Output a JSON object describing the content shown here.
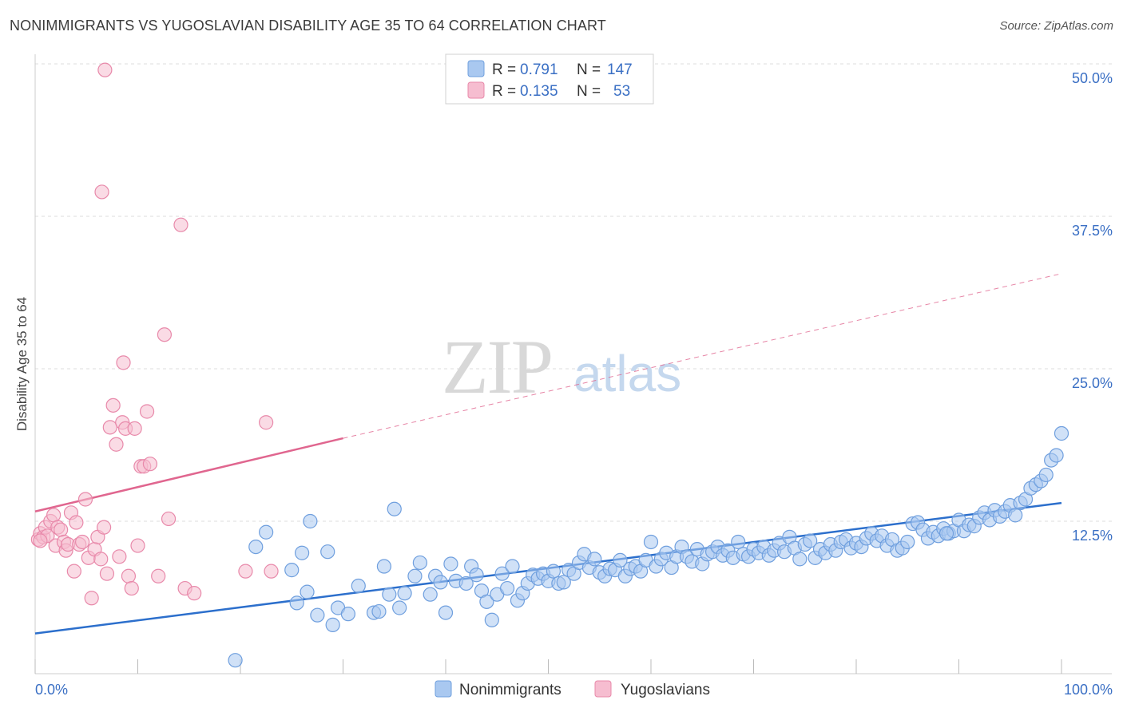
{
  "header": {
    "title": "NONIMMIGRANTS VS YUGOSLAVIAN DISABILITY AGE 35 TO 64 CORRELATION CHART",
    "source": "Source: ZipAtlas.com"
  },
  "watermark": {
    "zip": "ZIP",
    "atlas": "atlas"
  },
  "colors": {
    "blue_fill": "#a9c8f0",
    "blue_stroke": "#6f9fde",
    "blue_line": "#2c6fcc",
    "pink_fill": "#f6bdd0",
    "pink_stroke": "#e889aa",
    "pink_line": "#e0668f",
    "tick_text": "#3a6fc4",
    "grid": "#dcdcdc"
  },
  "chart_data": {
    "type": "scatter",
    "title": "NONIMMIGRANTS VS YUGOSLAVIAN DISABILITY AGE 35 TO 64 CORRELATION CHART",
    "xlabel": "",
    "ylabel": "Disability Age 35 to 64",
    "xlim": [
      0,
      100
    ],
    "ylim": [
      0,
      50
    ],
    "x_tick_labels": [
      "0.0%",
      "100.0%"
    ],
    "y_ticks": [
      12.5,
      25.0,
      37.5,
      50.0
    ],
    "y_tick_labels": [
      "12.5%",
      "25.0%",
      "37.5%",
      "50.0%"
    ],
    "grid": true,
    "legend_position": "top-center",
    "legend": [
      {
        "r_label": "R =",
        "r_value": "0.791",
        "n_label": "N =",
        "n_value": "147"
      },
      {
        "r_label": "R =",
        "r_value": "0.135",
        "n_label": "N =",
        "n_value": "53"
      }
    ],
    "bottom_legend": [
      "Nonimmigrants",
      "Yugoslavians"
    ],
    "series": [
      {
        "name": "Nonimmigrants",
        "color": "#a9c8f0",
        "trend": {
          "x": [
            0,
            100
          ],
          "y": [
            3.3,
            14.0
          ],
          "style": "solid"
        },
        "points": [
          [
            19.5,
            1.1
          ],
          [
            21.5,
            10.4
          ],
          [
            22.5,
            11.6
          ],
          [
            25.0,
            8.5
          ],
          [
            25.5,
            5.8
          ],
          [
            26.0,
            9.9
          ],
          [
            26.5,
            6.7
          ],
          [
            26.8,
            12.5
          ],
          [
            27.5,
            4.8
          ],
          [
            28.5,
            10.0
          ],
          [
            29.0,
            4.0
          ],
          [
            29.5,
            5.4
          ],
          [
            30.5,
            4.9
          ],
          [
            31.5,
            7.2
          ],
          [
            33.0,
            5.0
          ],
          [
            33.5,
            5.1
          ],
          [
            34.0,
            8.8
          ],
          [
            34.5,
            6.5
          ],
          [
            35.0,
            13.5
          ],
          [
            35.5,
            5.4
          ],
          [
            36.0,
            6.6
          ],
          [
            37.0,
            8.0
          ],
          [
            37.5,
            9.1
          ],
          [
            38.5,
            6.5
          ],
          [
            39.0,
            8.0
          ],
          [
            39.5,
            7.5
          ],
          [
            40.0,
            5.0
          ],
          [
            40.5,
            9.0
          ],
          [
            41.0,
            7.6
          ],
          [
            42.0,
            7.4
          ],
          [
            42.5,
            8.8
          ],
          [
            43.0,
            8.1
          ],
          [
            43.5,
            6.8
          ],
          [
            44.0,
            5.9
          ],
          [
            44.5,
            4.4
          ],
          [
            45.0,
            6.5
          ],
          [
            45.5,
            8.2
          ],
          [
            46.0,
            7.0
          ],
          [
            46.5,
            8.8
          ],
          [
            47.0,
            6.0
          ],
          [
            47.5,
            6.6
          ],
          [
            48.0,
            7.4
          ],
          [
            48.5,
            8.1
          ],
          [
            49.0,
            7.8
          ],
          [
            49.5,
            8.2
          ],
          [
            50.0,
            7.6
          ],
          [
            50.5,
            8.4
          ],
          [
            51.0,
            7.4
          ],
          [
            51.5,
            7.5
          ],
          [
            52.0,
            8.5
          ],
          [
            52.5,
            8.2
          ],
          [
            53.0,
            9.1
          ],
          [
            53.5,
            9.8
          ],
          [
            54.0,
            8.7
          ],
          [
            54.5,
            9.4
          ],
          [
            55.0,
            8.3
          ],
          [
            55.5,
            8.0
          ],
          [
            56.0,
            8.6
          ],
          [
            56.5,
            8.5
          ],
          [
            57.0,
            9.3
          ],
          [
            57.5,
            8.0
          ],
          [
            58.0,
            8.6
          ],
          [
            58.5,
            8.8
          ],
          [
            59.0,
            8.4
          ],
          [
            59.5,
            9.3
          ],
          [
            60.0,
            10.8
          ],
          [
            60.5,
            8.8
          ],
          [
            61.0,
            9.4
          ],
          [
            61.5,
            9.9
          ],
          [
            62.0,
            8.7
          ],
          [
            62.5,
            9.6
          ],
          [
            63.0,
            10.4
          ],
          [
            63.5,
            9.6
          ],
          [
            64.0,
            9.2
          ],
          [
            64.5,
            10.2
          ],
          [
            65.0,
            9.0
          ],
          [
            65.5,
            9.8
          ],
          [
            66.0,
            10.0
          ],
          [
            66.5,
            10.4
          ],
          [
            67.0,
            9.7
          ],
          [
            67.5,
            10.1
          ],
          [
            68.0,
            9.5
          ],
          [
            68.5,
            10.8
          ],
          [
            69.0,
            9.8
          ],
          [
            69.5,
            9.6
          ],
          [
            70.0,
            10.2
          ],
          [
            70.5,
            9.9
          ],
          [
            71.0,
            10.4
          ],
          [
            71.5,
            9.7
          ],
          [
            72.0,
            10.1
          ],
          [
            72.5,
            10.7
          ],
          [
            73.0,
            10.0
          ],
          [
            73.5,
            11.2
          ],
          [
            74.0,
            10.3
          ],
          [
            74.5,
            9.4
          ],
          [
            75.0,
            10.6
          ],
          [
            75.5,
            10.9
          ],
          [
            76.0,
            9.5
          ],
          [
            76.5,
            10.2
          ],
          [
            77.0,
            9.9
          ],
          [
            77.5,
            10.6
          ],
          [
            78.0,
            10.1
          ],
          [
            78.5,
            10.8
          ],
          [
            79.0,
            11.0
          ],
          [
            79.5,
            10.3
          ],
          [
            80.0,
            10.7
          ],
          [
            80.5,
            10.4
          ],
          [
            81.0,
            11.1
          ],
          [
            81.5,
            11.5
          ],
          [
            82.0,
            10.9
          ],
          [
            82.5,
            11.3
          ],
          [
            83.0,
            10.5
          ],
          [
            83.5,
            11.0
          ],
          [
            84.0,
            10.1
          ],
          [
            84.5,
            10.3
          ],
          [
            85.0,
            10.8
          ],
          [
            85.5,
            12.3
          ],
          [
            86.0,
            12.4
          ],
          [
            86.5,
            11.8
          ],
          [
            87.0,
            11.1
          ],
          [
            87.5,
            11.6
          ],
          [
            88.0,
            11.3
          ],
          [
            88.5,
            11.9
          ],
          [
            89.0,
            11.5
          ],
          [
            89.5,
            11.7
          ],
          [
            90.0,
            12.6
          ],
          [
            90.5,
            11.7
          ],
          [
            91.0,
            12.2
          ],
          [
            91.5,
            12.1
          ],
          [
            92.0,
            12.8
          ],
          [
            92.5,
            13.2
          ],
          [
            93.0,
            12.6
          ],
          [
            93.5,
            13.4
          ],
          [
            94.0,
            12.9
          ],
          [
            94.5,
            13.3
          ],
          [
            95.0,
            13.8
          ],
          [
            95.5,
            13.0
          ],
          [
            96.0,
            14.0
          ],
          [
            96.5,
            14.3
          ],
          [
            97.0,
            15.2
          ],
          [
            97.5,
            15.5
          ],
          [
            98.0,
            15.8
          ],
          [
            98.5,
            16.3
          ],
          [
            99.0,
            17.5
          ],
          [
            99.5,
            17.9
          ],
          [
            100.0,
            19.7
          ],
          [
            88.8,
            11.5
          ]
        ]
      },
      {
        "name": "Yugoslavians",
        "color": "#f6bdd0",
        "trend": {
          "x": [
            0,
            30,
            100
          ],
          "y": [
            13.3,
            19.3,
            32.8
          ],
          "style": "solid-then-dashed"
        },
        "points": [
          [
            0.3,
            11.0
          ],
          [
            0.5,
            11.5
          ],
          [
            0.8,
            11.2
          ],
          [
            1.0,
            12.0
          ],
          [
            1.2,
            11.3
          ],
          [
            1.5,
            12.5
          ],
          [
            1.8,
            13.0
          ],
          [
            2.0,
            10.5
          ],
          [
            2.2,
            12.0
          ],
          [
            2.5,
            11.8
          ],
          [
            2.8,
            10.8
          ],
          [
            3.0,
            10.1
          ],
          [
            3.2,
            10.6
          ],
          [
            3.5,
            13.2
          ],
          [
            3.8,
            8.4
          ],
          [
            4.0,
            12.4
          ],
          [
            4.3,
            10.6
          ],
          [
            4.6,
            10.8
          ],
          [
            4.9,
            14.3
          ],
          [
            5.2,
            9.5
          ],
          [
            5.5,
            6.2
          ],
          [
            5.8,
            10.2
          ],
          [
            6.1,
            11.2
          ],
          [
            6.4,
            9.4
          ],
          [
            6.7,
            12.0
          ],
          [
            7.0,
            8.2
          ],
          [
            7.3,
            20.2
          ],
          [
            7.6,
            22.0
          ],
          [
            7.9,
            18.8
          ],
          [
            8.2,
            9.6
          ],
          [
            8.5,
            20.6
          ],
          [
            8.8,
            20.1
          ],
          [
            9.1,
            8.0
          ],
          [
            9.4,
            7.0
          ],
          [
            9.7,
            20.1
          ],
          [
            10.0,
            10.5
          ],
          [
            10.3,
            17.0
          ],
          [
            10.6,
            17.0
          ],
          [
            10.9,
            21.5
          ],
          [
            11.2,
            17.2
          ],
          [
            12.0,
            8.0
          ],
          [
            12.6,
            27.8
          ],
          [
            13.0,
            12.7
          ],
          [
            14.2,
            36.8
          ],
          [
            14.6,
            7.0
          ],
          [
            15.5,
            6.6
          ],
          [
            20.5,
            8.4
          ],
          [
            22.5,
            20.6
          ],
          [
            23.0,
            8.4
          ],
          [
            6.5,
            39.5
          ],
          [
            6.8,
            49.5
          ],
          [
            8.6,
            25.5
          ],
          [
            0.5,
            10.9
          ]
        ]
      }
    ]
  }
}
